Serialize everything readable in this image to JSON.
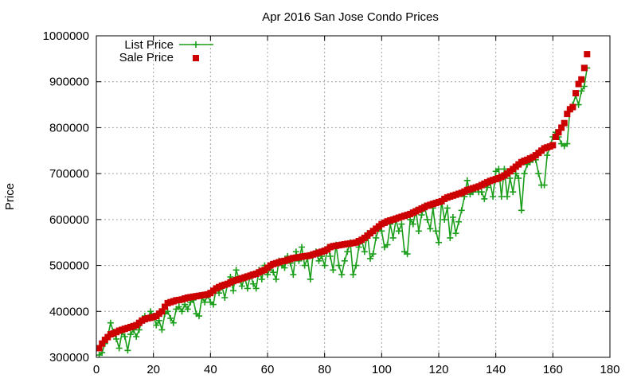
{
  "chart_data": {
    "type": "scatter",
    "title": "Apr 2016 San Jose Condo Prices",
    "xlabel": "",
    "ylabel": "Price",
    "xlim": [
      0,
      180
    ],
    "ylim": [
      300000,
      1000000
    ],
    "x_ticks": [
      0,
      20,
      40,
      60,
      80,
      100,
      120,
      140,
      160,
      180
    ],
    "y_ticks": [
      300000,
      400000,
      500000,
      600000,
      700000,
      800000,
      900000,
      1000000
    ],
    "grid": true,
    "legend_position": "top-left",
    "series": [
      {
        "name": "List Price",
        "style": "line+plus",
        "color": "#1a9e1a",
        "x": [
          1,
          2,
          3,
          4,
          5,
          6,
          7,
          8,
          9,
          10,
          11,
          12,
          13,
          14,
          15,
          16,
          17,
          18,
          19,
          20,
          21,
          22,
          23,
          24,
          25,
          26,
          27,
          28,
          29,
          30,
          31,
          32,
          33,
          34,
          35,
          36,
          37,
          38,
          39,
          40,
          41,
          42,
          43,
          44,
          45,
          46,
          47,
          48,
          49,
          50,
          51,
          52,
          53,
          54,
          55,
          56,
          57,
          58,
          59,
          60,
          61,
          62,
          63,
          64,
          65,
          66,
          67,
          68,
          69,
          70,
          71,
          72,
          73,
          74,
          75,
          76,
          77,
          78,
          79,
          80,
          81,
          82,
          83,
          84,
          85,
          86,
          87,
          88,
          89,
          90,
          91,
          92,
          93,
          94,
          95,
          96,
          97,
          98,
          99,
          100,
          101,
          102,
          103,
          104,
          105,
          106,
          107,
          108,
          109,
          110,
          111,
          112,
          113,
          114,
          115,
          116,
          117,
          118,
          119,
          120,
          121,
          122,
          123,
          124,
          125,
          126,
          127,
          128,
          129,
          130,
          131,
          132,
          133,
          134,
          135,
          136,
          137,
          138,
          139,
          140,
          141,
          142,
          143,
          144,
          145,
          146,
          147,
          148,
          149,
          150,
          151,
          152,
          153,
          154,
          155,
          156,
          157,
          158,
          159,
          160,
          161,
          162,
          163,
          164,
          165,
          166,
          167,
          168,
          169,
          170,
          171,
          172
        ],
        "values": [
          305000,
          310000,
          330000,
          345000,
          375000,
          355000,
          340000,
          320000,
          355000,
          345000,
          315000,
          350000,
          360000,
          345000,
          360000,
          380000,
          390000,
          385000,
          400000,
          390000,
          370000,
          380000,
          360000,
          395000,
          400000,
          385000,
          375000,
          405000,
          410000,
          400000,
          415000,
          405000,
          420000,
          425000,
          395000,
          390000,
          430000,
          420000,
          435000,
          420000,
          415000,
          450000,
          440000,
          455000,
          430000,
          460000,
          475000,
          445000,
          490000,
          470000,
          455000,
          475000,
          450000,
          480000,
          460000,
          450000,
          490000,
          470000,
          500000,
          480000,
          495000,
          485000,
          470000,
          510000,
          500000,
          495000,
          520000,
          505000,
          480000,
          530000,
          510000,
          540000,
          500000,
          515000,
          470000,
          525000,
          530000,
          510000,
          520000,
          500000,
          540000,
          520000,
          490000,
          545000,
          500000,
          480000,
          510000,
          530000,
          550000,
          480000,
          500000,
          540000,
          555000,
          530000,
          570000,
          515000,
          525000,
          560000,
          580000,
          575000,
          540000,
          545000,
          590000,
          560000,
          600000,
          575000,
          590000,
          530000,
          525000,
          600000,
          590000,
          620000,
          575000,
          610000,
          630000,
          600000,
          580000,
          625000,
          575000,
          550000,
          640000,
          600000,
          625000,
          560000,
          605000,
          570000,
          595000,
          620000,
          650000,
          685000,
          655000,
          660000,
          670000,
          660000,
          660000,
          645000,
          670000,
          680000,
          650000,
          705000,
          710000,
          650000,
          710000,
          650000,
          690000,
          660000,
          700000,
          690000,
          620000,
          700000,
          720000,
          725000,
          730000,
          730000,
          700000,
          675000,
          675000,
          740000,
          760000,
          780000,
          790000,
          780000,
          765000,
          760000,
          765000,
          840000,
          850000,
          870000,
          850000,
          880000,
          890000,
          930000
        ]
      },
      {
        "name": "Sale Price",
        "style": "square",
        "color": "#cc0000",
        "x": [
          1,
          2,
          3,
          4,
          5,
          6,
          7,
          8,
          9,
          10,
          11,
          12,
          13,
          14,
          15,
          16,
          17,
          18,
          19,
          20,
          21,
          22,
          23,
          24,
          25,
          26,
          27,
          28,
          29,
          30,
          31,
          32,
          33,
          34,
          35,
          36,
          37,
          38,
          39,
          40,
          41,
          42,
          43,
          44,
          45,
          46,
          47,
          48,
          49,
          50,
          51,
          52,
          53,
          54,
          55,
          56,
          57,
          58,
          59,
          60,
          61,
          62,
          63,
          64,
          65,
          66,
          67,
          68,
          69,
          70,
          71,
          72,
          73,
          74,
          75,
          76,
          77,
          78,
          79,
          80,
          81,
          82,
          83,
          84,
          85,
          86,
          87,
          88,
          89,
          90,
          91,
          92,
          93,
          94,
          95,
          96,
          97,
          98,
          99,
          100,
          101,
          102,
          103,
          104,
          105,
          106,
          107,
          108,
          109,
          110,
          111,
          112,
          113,
          114,
          115,
          116,
          117,
          118,
          119,
          120,
          121,
          122,
          123,
          124,
          125,
          126,
          127,
          128,
          129,
          130,
          131,
          132,
          133,
          134,
          135,
          136,
          137,
          138,
          139,
          140,
          141,
          142,
          143,
          144,
          145,
          146,
          147,
          148,
          149,
          150,
          151,
          152,
          153,
          154,
          155,
          156,
          157,
          158,
          159,
          160,
          161,
          162,
          163,
          164,
          165,
          166,
          167,
          168,
          169,
          170,
          171,
          172
        ],
        "values": [
          320000,
          330000,
          338000,
          344000,
          350000,
          352000,
          355000,
          358000,
          360000,
          362000,
          364000,
          366000,
          368000,
          370000,
          375000,
          380000,
          383000,
          385000,
          386000,
          388000,
          390000,
          395000,
          400000,
          410000,
          418000,
          420000,
          422000,
          424000,
          425000,
          426000,
          428000,
          430000,
          431000,
          432000,
          433000,
          434000,
          435000,
          436000,
          437000,
          440000,
          445000,
          450000,
          453000,
          456000,
          458000,
          460000,
          463000,
          466000,
          468000,
          470000,
          472000,
          474000,
          476000,
          478000,
          480000,
          482000,
          485000,
          488000,
          490000,
          495000,
          500000,
          503000,
          505000,
          507000,
          509000,
          510000,
          512000,
          514000,
          516000,
          517000,
          518000,
          519000,
          520000,
          521000,
          522000,
          524000,
          526000,
          528000,
          530000,
          532000,
          535000,
          540000,
          542000,
          543000,
          544000,
          545000,
          546000,
          547000,
          548000,
          549000,
          550000,
          553000,
          556000,
          560000,
          565000,
          570000,
          575000,
          580000,
          585000,
          590000,
          593000,
          596000,
          598000,
          600000,
          602000,
          604000,
          606000,
          608000,
          610000,
          612000,
          615000,
          618000,
          621000,
          624000,
          627000,
          630000,
          632000,
          634000,
          636000,
          638000,
          640000,
          645000,
          648000,
          650000,
          652000,
          654000,
          656000,
          658000,
          661000,
          664000,
          666000,
          668000,
          670000,
          672000,
          675000,
          678000,
          681000,
          684000,
          686000,
          688000,
          690000,
          693000,
          696000,
          700000,
          705000,
          710000,
          715000,
          720000,
          725000,
          728000,
          730000,
          733000,
          736000,
          740000,
          745000,
          750000,
          755000,
          757000,
          759000,
          762000,
          780000,
          790000,
          800000,
          810000,
          830000,
          840000,
          845000,
          875000,
          895000,
          905000,
          930000,
          960000
        ]
      }
    ]
  }
}
